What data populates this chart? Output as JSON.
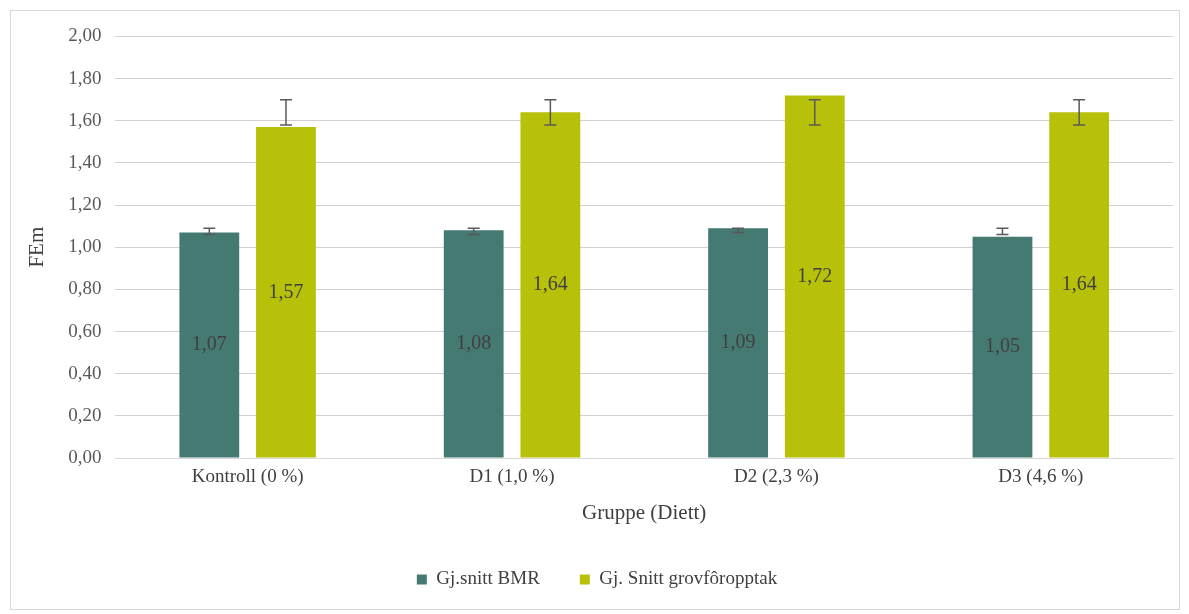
{
  "chart_data": {
    "type": "bar",
    "xlabel": "Gruppe (Diett)",
    "ylabel": "FEm",
    "categories": [
      "Kontroll (0 %)",
      "D1 (1,0 %)",
      "D2 (2,3 %)",
      "D3 (4,6 %)"
    ],
    "series": [
      {
        "name": "Gj.snitt BMR",
        "color": "#457a72",
        "values": [
          1.07,
          1.08,
          1.09,
          1.05
        ],
        "value_labels": [
          "1,07",
          "1,08",
          "1,09",
          "1,05"
        ],
        "errors": [
          [
            1.06,
            1.09
          ],
          [
            1.06,
            1.09
          ],
          [
            1.07,
            1.09
          ],
          [
            1.06,
            1.09
          ]
        ]
      },
      {
        "name": "Gj. Snitt grovfôropptak",
        "color": "#b8c109",
        "values": [
          1.57,
          1.64,
          1.72,
          1.64
        ],
        "value_labels": [
          "1,57",
          "1,64",
          "1,72",
          "1,64"
        ],
        "errors": [
          [
            1.58,
            1.7
          ],
          [
            1.58,
            1.7
          ],
          [
            1.58,
            1.7
          ],
          [
            1.58,
            1.7
          ]
        ]
      }
    ],
    "ylim": [
      0,
      2
    ],
    "yticks": [
      {
        "value": 0,
        "label": "0,00"
      },
      {
        "value": 0.2,
        "label": "0,20"
      },
      {
        "value": 0.4,
        "label": "0,40"
      },
      {
        "value": 0.6,
        "label": "0,60"
      },
      {
        "value": 0.8,
        "label": "0,80"
      },
      {
        "value": 1,
        "label": "1,00"
      },
      {
        "value": 1.2,
        "label": "1,20"
      },
      {
        "value": 1.4,
        "label": "1,40"
      },
      {
        "value": 1.6,
        "label": "1,60"
      },
      {
        "value": 1.8,
        "label": "1,80"
      },
      {
        "value": 2,
        "label": "2,00"
      }
    ],
    "grid": "y",
    "legend": "bottom"
  }
}
